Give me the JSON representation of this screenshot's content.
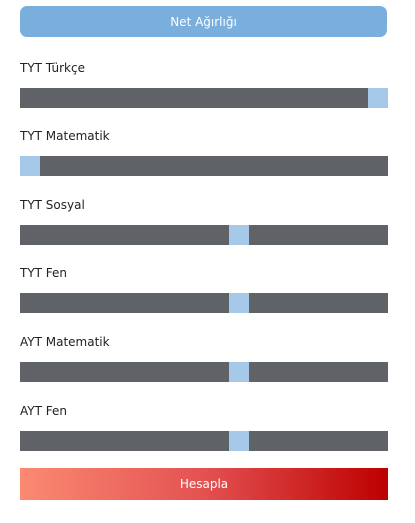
{
  "header": {
    "title": "Net Ağırlığı"
  },
  "sliders": [
    {
      "label": "TYT Türkçe",
      "value": 1.0
    },
    {
      "label": "TYT Matematik",
      "value": 0.0
    },
    {
      "label": "TYT Sosyal",
      "value": 0.6
    },
    {
      "label": "TYT Fen",
      "value": 0.6
    },
    {
      "label": "AYT Matematik",
      "value": 0.6
    },
    {
      "label": "AYT Fen",
      "value": 0.6
    }
  ],
  "submit": {
    "label": "Hesapla"
  },
  "colors": {
    "header_bg": "#7aafdd",
    "track": "#5f6266",
    "thumb": "#a6c9ea",
    "button_start": "#fb8a72",
    "button_end": "#bd0000"
  }
}
